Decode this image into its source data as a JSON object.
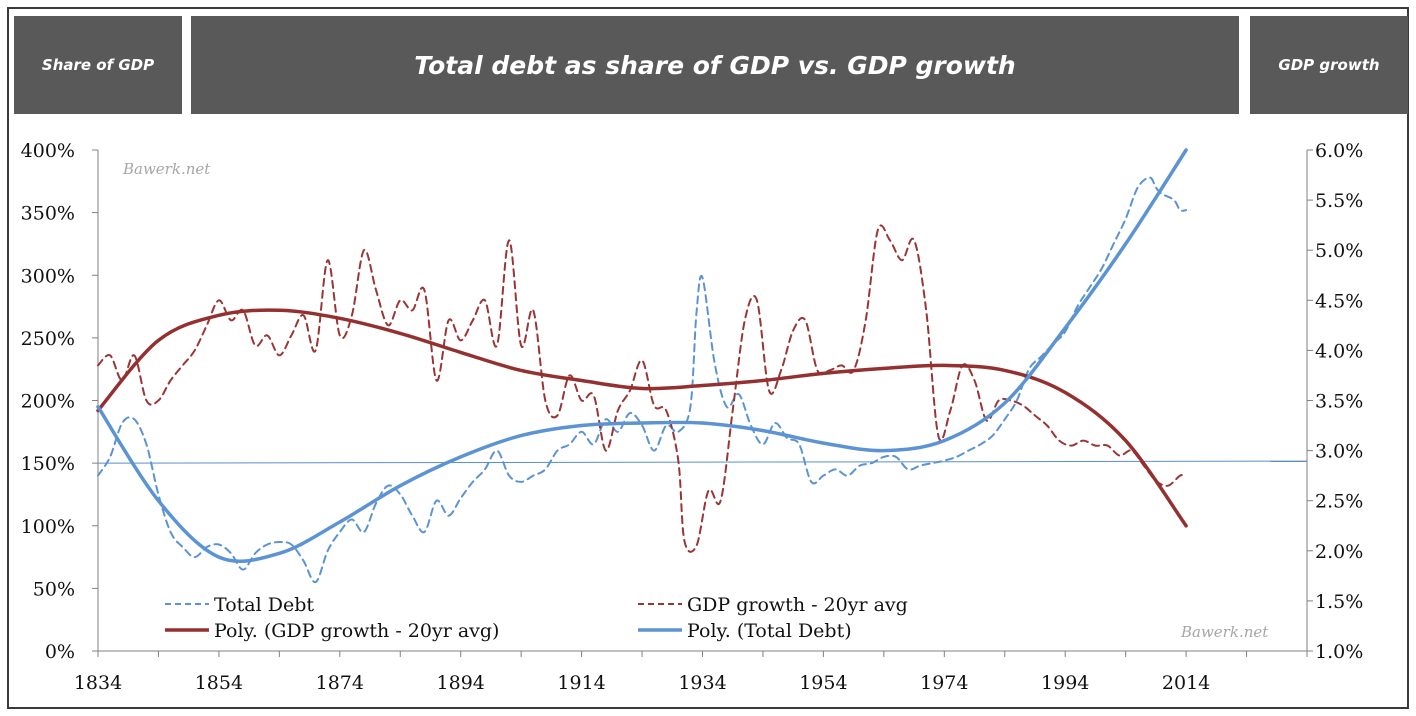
{
  "header": {
    "left": "Share of GDP",
    "title": "Total debt as share of GDP vs. GDP growth",
    "right": "GDP growth"
  },
  "watermark": "Bawerk.net",
  "colors": {
    "debt": "#5b93d3",
    "growth": "#9b3535",
    "debt_poly": "#5b93d3",
    "growth_poly": "#943030",
    "ref_line": "#5b8fc9",
    "header_bg": "#595959"
  },
  "chart_data": {
    "type": "line",
    "title": "Total debt as share of GDP vs. GDP growth",
    "grid": false,
    "legend_position": "bottom",
    "x_axis": {
      "min": 1834,
      "max": 2034,
      "ticks": [
        1834,
        1854,
        1874,
        1894,
        1914,
        1934,
        1954,
        1974,
        1994,
        2014
      ]
    },
    "y_left": {
      "label": "Share of GDP",
      "min": 0,
      "max": 400,
      "ticks": [
        "0%",
        "50%",
        "100%",
        "150%",
        "200%",
        "250%",
        "300%",
        "350%",
        "400%"
      ]
    },
    "y_right": {
      "label": "GDP growth",
      "min": 1.0,
      "max": 6.0,
      "ticks": [
        "1.0%",
        "1.5%",
        "2.0%",
        "2.5%",
        "3.0%",
        "3.5%",
        "4.0%",
        "4.5%",
        "5.0%",
        "5.5%",
        "6.0%"
      ]
    },
    "reference_line": {
      "axis": "left",
      "y": 150
    },
    "series": [
      {
        "name": "Total Debt",
        "axis": "left",
        "style": "dashed",
        "x": [
          1834,
          1836,
          1838,
          1840,
          1842,
          1844,
          1846,
          1848,
          1850,
          1852,
          1854,
          1856,
          1858,
          1860,
          1862,
          1864,
          1866,
          1868,
          1870,
          1872,
          1874,
          1876,
          1878,
          1880,
          1882,
          1884,
          1886,
          1888,
          1890,
          1892,
          1894,
          1896,
          1898,
          1900,
          1902,
          1904,
          1906,
          1908,
          1910,
          1912,
          1914,
          1916,
          1918,
          1920,
          1922,
          1924,
          1926,
          1928,
          1930,
          1932,
          1933,
          1934,
          1936,
          1938,
          1940,
          1942,
          1944,
          1946,
          1948,
          1950,
          1952,
          1954,
          1956,
          1958,
          1960,
          1962,
          1964,
          1966,
          1968,
          1970,
          1972,
          1974,
          1976,
          1978,
          1980,
          1982,
          1984,
          1986,
          1988,
          1990,
          1992,
          1994,
          1996,
          1998,
          2000,
          2002,
          2004,
          2006,
          2008,
          2009,
          2010,
          2012,
          2013,
          2014
        ],
        "y": [
          140,
          155,
          182,
          185,
          165,
          125,
          95,
          83,
          75,
          83,
          85,
          78,
          65,
          78,
          85,
          87,
          85,
          72,
          55,
          80,
          95,
          105,
          95,
          118,
          132,
          125,
          108,
          95,
          120,
          108,
          122,
          135,
          145,
          160,
          140,
          135,
          140,
          145,
          160,
          165,
          175,
          165,
          185,
          175,
          190,
          180,
          160,
          180,
          175,
          195,
          270,
          298,
          230,
          195,
          205,
          180,
          165,
          182,
          170,
          165,
          135,
          140,
          145,
          140,
          148,
          150,
          155,
          155,
          145,
          148,
          150,
          152,
          155,
          160,
          165,
          172,
          185,
          200,
          225,
          235,
          245,
          255,
          275,
          290,
          305,
          325,
          345,
          370,
          378,
          370,
          365,
          360,
          352,
          352
        ]
      },
      {
        "name": "GDP growth - 20yr avg",
        "axis": "right",
        "style": "dashed",
        "x": [
          1834,
          1836,
          1838,
          1840,
          1842,
          1844,
          1846,
          1848,
          1850,
          1852,
          1854,
          1856,
          1858,
          1860,
          1862,
          1864,
          1866,
          1868,
          1870,
          1872,
          1874,
          1876,
          1878,
          1880,
          1882,
          1884,
          1886,
          1888,
          1890,
          1892,
          1894,
          1896,
          1898,
          1900,
          1902,
          1904,
          1906,
          1908,
          1910,
          1912,
          1914,
          1916,
          1918,
          1920,
          1922,
          1924,
          1926,
          1928,
          1930,
          1931,
          1933,
          1935,
          1937,
          1939,
          1941,
          1943,
          1945,
          1947,
          1949,
          1951,
          1953,
          1955,
          1957,
          1959,
          1961,
          1963,
          1965,
          1967,
          1969,
          1971,
          1973,
          1975,
          1977,
          1979,
          1981,
          1983,
          1985,
          1987,
          1989,
          1991,
          1993,
          1995,
          1997,
          1999,
          2001,
          2003,
          2005,
          2007,
          2009,
          2011,
          2013,
          2014
        ],
        "y": [
          3.85,
          3.95,
          3.7,
          3.95,
          3.5,
          3.5,
          3.7,
          3.85,
          4.0,
          4.25,
          4.5,
          4.3,
          4.4,
          4.05,
          4.15,
          3.95,
          4.15,
          4.35,
          4.0,
          4.9,
          4.15,
          4.35,
          5.0,
          4.6,
          4.25,
          4.5,
          4.4,
          4.6,
          3.7,
          4.3,
          4.1,
          4.3,
          4.5,
          4.05,
          5.1,
          4.05,
          4.4,
          3.5,
          3.35,
          3.75,
          3.5,
          3.55,
          3.0,
          3.4,
          3.6,
          3.9,
          3.45,
          3.4,
          2.9,
          2.1,
          2.05,
          2.6,
          2.5,
          3.4,
          4.3,
          4.5,
          3.6,
          3.8,
          4.2,
          4.3,
          3.8,
          3.8,
          3.85,
          3.8,
          4.3,
          5.2,
          5.1,
          4.9,
          5.1,
          4.4,
          3.15,
          3.4,
          3.85,
          3.7,
          3.3,
          3.5,
          3.5,
          3.45,
          3.35,
          3.25,
          3.1,
          3.05,
          3.1,
          3.05,
          3.05,
          2.95,
          3.0,
          2.85,
          2.7,
          2.65,
          2.75,
          2.75
        ]
      },
      {
        "name": "Poly. (GDP growth - 20yr avg)",
        "axis": "right",
        "style": "solid",
        "x": [
          1834,
          1844,
          1854,
          1864,
          1874,
          1884,
          1894,
          1904,
          1914,
          1924,
          1934,
          1944,
          1954,
          1964,
          1974,
          1984,
          1994,
          2004,
          2014
        ],
        "y": [
          3.4,
          4.1,
          4.35,
          4.4,
          4.32,
          4.17,
          3.98,
          3.8,
          3.7,
          3.62,
          3.65,
          3.7,
          3.77,
          3.82,
          3.85,
          3.8,
          3.58,
          3.1,
          2.25
        ]
      },
      {
        "name": "Poly. (Total Debt)",
        "axis": "left",
        "style": "solid",
        "x": [
          1834,
          1844,
          1854,
          1864,
          1874,
          1884,
          1894,
          1904,
          1914,
          1924,
          1934,
          1944,
          1954,
          1964,
          1974,
          1984,
          1994,
          2004,
          2014
        ],
        "y": [
          195,
          120,
          75,
          78,
          103,
          132,
          155,
          172,
          180,
          182,
          182,
          176,
          166,
          160,
          168,
          198,
          258,
          325,
          400
        ]
      }
    ]
  }
}
